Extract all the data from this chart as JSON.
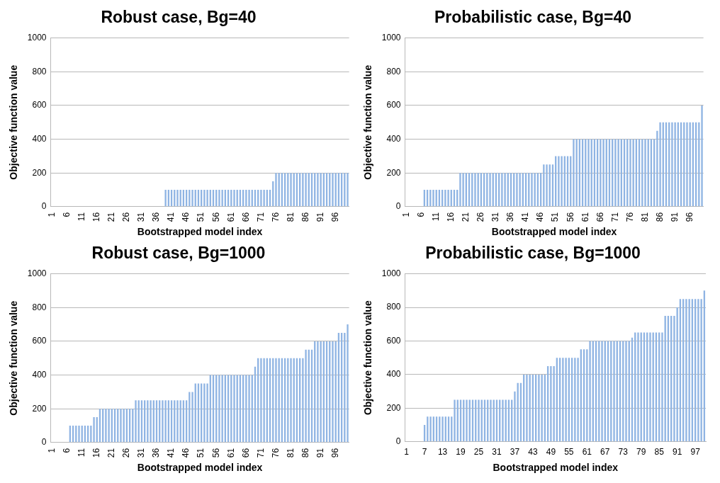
{
  "chart_data": [
    {
      "type": "bar",
      "title": "Robust case, Bg=40",
      "xlabel": "Bootstrapped model index",
      "ylabel": "Objective function value",
      "color": "#8fb4e3",
      "ylim": [
        0,
        1000
      ],
      "yticks": [
        0,
        200,
        400,
        600,
        800,
        1000
      ],
      "grid": "y",
      "categories": [
        "1",
        null,
        null,
        null,
        null,
        "6",
        null,
        null,
        null,
        null,
        "11",
        null,
        null,
        null,
        null,
        "16",
        null,
        null,
        null,
        null,
        "21",
        null,
        null,
        null,
        null,
        "26",
        null,
        null,
        null,
        null,
        "31",
        null,
        null,
        null,
        null,
        "36",
        null,
        null,
        null,
        null,
        "41",
        null,
        null,
        null,
        null,
        "46",
        null,
        null,
        null,
        null,
        "51",
        null,
        null,
        null,
        null,
        "56",
        null,
        null,
        null,
        null,
        "61",
        null,
        null,
        null,
        null,
        "66",
        null,
        null,
        null,
        null,
        "71",
        null,
        null,
        null,
        null,
        "76",
        null,
        null,
        null,
        null,
        "81",
        null,
        null,
        null,
        null,
        "86",
        null,
        null,
        null,
        null,
        "91",
        null,
        null,
        null,
        null,
        "96",
        null,
        null,
        null,
        null
      ],
      "values": [
        0,
        0,
        0,
        0,
        0,
        0,
        0,
        0,
        0,
        0,
        0,
        0,
        0,
        0,
        0,
        0,
        0,
        0,
        0,
        0,
        0,
        0,
        0,
        0,
        0,
        0,
        0,
        0,
        0,
        0,
        0,
        0,
        0,
        0,
        0,
        0,
        0,
        0,
        100,
        100,
        100,
        100,
        100,
        100,
        100,
        100,
        100,
        100,
        100,
        100,
        100,
        100,
        100,
        100,
        100,
        100,
        100,
        100,
        100,
        100,
        100,
        100,
        100,
        100,
        100,
        100,
        100,
        100,
        100,
        100,
        100,
        100,
        100,
        100,
        150,
        200,
        200,
        200,
        200,
        200,
        200,
        200,
        200,
        200,
        200,
        200,
        200,
        200,
        200,
        200,
        200,
        200,
        200,
        200,
        200,
        200,
        200,
        200,
        200,
        200
      ]
    },
    {
      "type": "bar",
      "title": "Probabilistic case, Bg=40",
      "xlabel": "Bootstrapped model index",
      "ylabel": "Objective function value",
      "color": "#8fb4e3",
      "ylim": [
        0,
        1000
      ],
      "yticks": [
        0,
        200,
        400,
        600,
        800,
        1000
      ],
      "grid": "y",
      "categories": [
        "1",
        null,
        null,
        null,
        null,
        "6",
        null,
        null,
        null,
        null,
        "11",
        null,
        null,
        null,
        null,
        "16",
        null,
        null,
        null,
        null,
        "21",
        null,
        null,
        null,
        null,
        "26",
        null,
        null,
        null,
        null,
        "31",
        null,
        null,
        null,
        null,
        "36",
        null,
        null,
        null,
        null,
        "41",
        null,
        null,
        null,
        null,
        "46",
        null,
        null,
        null,
        null,
        "51",
        null,
        null,
        null,
        null,
        "56",
        null,
        null,
        null,
        null,
        "61",
        null,
        null,
        null,
        null,
        "66",
        null,
        null,
        null,
        null,
        "71",
        null,
        null,
        null,
        null,
        "76",
        null,
        null,
        null,
        null,
        "81",
        null,
        null,
        null,
        null,
        "86",
        null,
        null,
        null,
        null,
        "91",
        null,
        null,
        null,
        null,
        "96",
        null,
        null,
        null,
        null
      ],
      "values": [
        0,
        0,
        0,
        0,
        0,
        0,
        100,
        100,
        100,
        100,
        100,
        100,
        100,
        100,
        100,
        100,
        100,
        100,
        200,
        200,
        200,
        200,
        200,
        200,
        200,
        200,
        200,
        200,
        200,
        200,
        200,
        200,
        200,
        200,
        200,
        200,
        200,
        200,
        200,
        200,
        200,
        200,
        200,
        200,
        200,
        200,
        250,
        250,
        250,
        250,
        300,
        300,
        300,
        300,
        300,
        300,
        400,
        400,
        400,
        400,
        400,
        400,
        400,
        400,
        400,
        400,
        400,
        400,
        400,
        400,
        400,
        400,
        400,
        400,
        400,
        400,
        400,
        400,
        400,
        400,
        400,
        400,
        400,
        400,
        450,
        500,
        500,
        500,
        500,
        500,
        500,
        500,
        500,
        500,
        500,
        500,
        500,
        500,
        500,
        600
      ]
    },
    {
      "type": "bar",
      "title": "Robust case, Bg=1000",
      "xlabel": "Bootstrapped model index",
      "ylabel": "Objective function value",
      "color": "#8fb4e3",
      "ylim": [
        0,
        1000
      ],
      "yticks": [
        0,
        200,
        400,
        600,
        800,
        1000
      ],
      "grid": "y",
      "categories": [
        "1",
        null,
        null,
        null,
        null,
        "6",
        null,
        null,
        null,
        null,
        "11",
        null,
        null,
        null,
        null,
        "16",
        null,
        null,
        null,
        null,
        "21",
        null,
        null,
        null,
        null,
        "26",
        null,
        null,
        null,
        null,
        "31",
        null,
        null,
        null,
        null,
        "36",
        null,
        null,
        null,
        null,
        "41",
        null,
        null,
        null,
        null,
        "46",
        null,
        null,
        null,
        null,
        "51",
        null,
        null,
        null,
        null,
        "56",
        null,
        null,
        null,
        null,
        "61",
        null,
        null,
        null,
        null,
        "66",
        null,
        null,
        null,
        null,
        "71",
        null,
        null,
        null,
        null,
        "76",
        null,
        null,
        null,
        null,
        "81",
        null,
        null,
        null,
        null,
        "86",
        null,
        null,
        null,
        null,
        "91",
        null,
        null,
        null,
        null,
        "96",
        null,
        null,
        null,
        null
      ],
      "values": [
        0,
        0,
        0,
        0,
        0,
        0,
        100,
        100,
        100,
        100,
        100,
        100,
        100,
        100,
        150,
        150,
        200,
        200,
        200,
        200,
        200,
        200,
        200,
        200,
        200,
        200,
        200,
        200,
        250,
        250,
        250,
        250,
        250,
        250,
        250,
        250,
        250,
        250,
        250,
        250,
        250,
        250,
        250,
        250,
        250,
        250,
        300,
        300,
        350,
        350,
        350,
        350,
        350,
        400,
        400,
        400,
        400,
        400,
        400,
        400,
        400,
        400,
        400,
        400,
        400,
        400,
        400,
        400,
        450,
        500,
        500,
        500,
        500,
        500,
        500,
        500,
        500,
        500,
        500,
        500,
        500,
        500,
        500,
        500,
        500,
        550,
        550,
        550,
        600,
        600,
        600,
        600,
        600,
        600,
        600,
        600,
        650,
        650,
        650,
        700
      ]
    },
    {
      "type": "bar",
      "title": "Probabilistic case, Bg=1000",
      "xlabel": "Bootstrapped model index",
      "ylabel": "Objective function value",
      "color": "#8fb4e3",
      "ylim": [
        0,
        1000
      ],
      "yticks": [
        0,
        200,
        400,
        600,
        800,
        1000
      ],
      "grid": "y",
      "categories": [
        "1",
        null,
        null,
        null,
        null,
        null,
        "7",
        null,
        null,
        null,
        null,
        null,
        "13",
        null,
        null,
        null,
        null,
        null,
        "19",
        null,
        null,
        null,
        null,
        null,
        "25",
        null,
        null,
        null,
        null,
        null,
        "31",
        null,
        null,
        null,
        null,
        null,
        "37",
        null,
        null,
        null,
        null,
        null,
        "43",
        null,
        null,
        null,
        null,
        null,
        "49",
        null,
        null,
        null,
        null,
        null,
        "55",
        null,
        null,
        null,
        null,
        null,
        "61",
        null,
        null,
        null,
        null,
        null,
        "67",
        null,
        null,
        null,
        null,
        null,
        "73",
        null,
        null,
        null,
        null,
        null,
        "79",
        null,
        null,
        null,
        null,
        null,
        "85",
        null,
        null,
        null,
        null,
        null,
        "91",
        null,
        null,
        null,
        null,
        null,
        "97",
        null,
        null,
        null
      ],
      "values": [
        0,
        0,
        0,
        0,
        0,
        0,
        100,
        150,
        150,
        150,
        150,
        150,
        150,
        150,
        150,
        150,
        250,
        250,
        250,
        250,
        250,
        250,
        250,
        250,
        250,
        250,
        250,
        250,
        250,
        250,
        250,
        250,
        250,
        250,
        250,
        250,
        300,
        350,
        350,
        400,
        400,
        400,
        400,
        400,
        400,
        400,
        400,
        450,
        450,
        450,
        500,
        500,
        500,
        500,
        500,
        500,
        500,
        500,
        550,
        550,
        550,
        600,
        600,
        600,
        600,
        600,
        600,
        600,
        600,
        600,
        600,
        600,
        600,
        600,
        600,
        620,
        650,
        650,
        650,
        650,
        650,
        650,
        650,
        650,
        650,
        650,
        750,
        750,
        750,
        750,
        800,
        850,
        850,
        850,
        850,
        850,
        850,
        850,
        850,
        900
      ]
    }
  ]
}
